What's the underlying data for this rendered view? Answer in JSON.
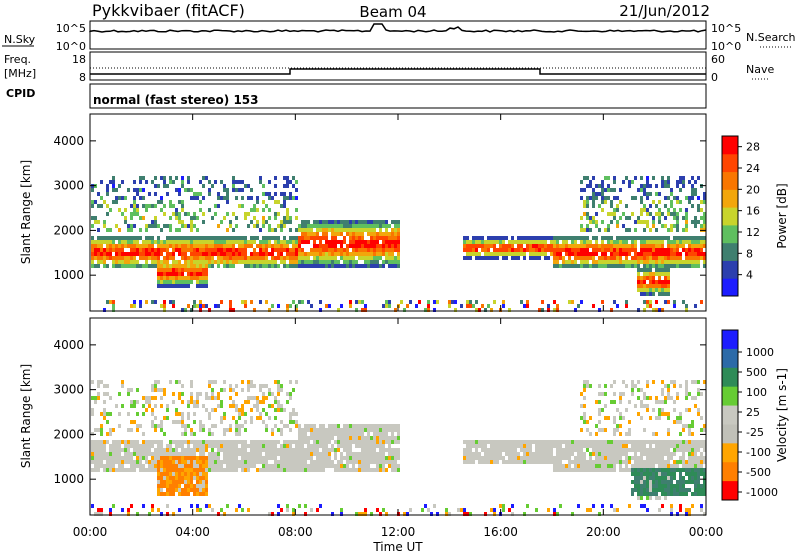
{
  "header": {
    "title": "Pykkvibaer (fitACF)",
    "beam": "Beam 04",
    "date": "21/Jun/2012"
  },
  "panels": {
    "nsky": {
      "label": "N.Sky",
      "ticks": [
        "10^5",
        "10^0"
      ],
      "right_ticks": [
        "10^5",
        "10^0"
      ],
      "right_label": "N.Search"
    },
    "freq": {
      "label_top": "Freq.",
      "label_bottom": "[MHz]",
      "ticks": [
        "18",
        "8"
      ],
      "right_ticks": [
        "60",
        "0"
      ],
      "right_label": "Nave"
    },
    "cpid": {
      "label": "CPID",
      "program": "normal (fast stereo) 153"
    }
  },
  "colors": {
    "power": [
      "#1c1cff",
      "#2c3fae",
      "#3f7f6f",
      "#5fbf5f",
      "#c8d42c",
      "#f2a60b",
      "#f97600",
      "#ff4500",
      "#ff0000"
    ],
    "velocity": [
      "#1c1cff",
      "#2c6aa8",
      "#2e8b57",
      "#66cc33",
      "#c8c8c0",
      "#c0c0b8",
      "#ffa500",
      "#ff7f00",
      "#ff0000"
    ]
  },
  "chart_data": [
    {
      "type": "heatmap",
      "title": "",
      "xlabel": "",
      "ylabel": "Slant Range [km]",
      "x_ticks": [
        "00:00",
        "04:00",
        "08:00",
        "12:00",
        "16:00",
        "20:00",
        "00:00"
      ],
      "y_ticks": [
        "1000",
        "2000",
        "3000",
        "4000"
      ],
      "ylim": [
        200,
        4600
      ],
      "colorbar": {
        "label": "Power [dB]",
        "ticks": [
          "28",
          "24",
          "20",
          "16",
          "12",
          "8",
          "4"
        ],
        "range": [
          0,
          30
        ]
      },
      "bands": [
        {
          "start_h": 0.0,
          "end_h": 8.0,
          "range_km": [
            1300,
            1800
          ],
          "level": "high"
        },
        {
          "start_h": 2.5,
          "end_h": 4.5,
          "range_km": [
            900,
            1300
          ],
          "level": "high"
        },
        {
          "start_h": 8.0,
          "end_h": 12.0,
          "range_km": [
            1400,
            2100
          ],
          "level": "high"
        },
        {
          "start_h": 14.5,
          "end_h": 18.0,
          "range_km": [
            1500,
            1800
          ],
          "level": "high"
        },
        {
          "start_h": 18.0,
          "end_h": 24.0,
          "range_km": [
            1300,
            1800
          ],
          "level": "high"
        },
        {
          "start_h": 21.3,
          "end_h": 22.5,
          "range_km": [
            700,
            1100
          ],
          "level": "high"
        }
      ]
    },
    {
      "type": "heatmap",
      "title": "",
      "xlabel": "Time UT",
      "ylabel": "Slant Range [km]",
      "x_ticks": [
        "00:00",
        "04:00",
        "08:00",
        "12:00",
        "16:00",
        "20:00",
        "00:00"
      ],
      "y_ticks": [
        "1000",
        "2000",
        "3000",
        "4000"
      ],
      "ylim": [
        200,
        4600
      ],
      "colorbar": {
        "label": "Velocity [m s-1]",
        "ticks": [
          "1000",
          "500",
          "100",
          "25",
          "-25",
          "-100",
          "-500",
          "-1000"
        ],
        "range": [
          -1000,
          1000
        ]
      },
      "bands": [
        {
          "start_h": 2.5,
          "end_h": 4.5,
          "range_km": [
            700,
            1600
          ],
          "level": "-500"
        },
        {
          "start_h": 21.0,
          "end_h": 24.0,
          "range_km": [
            700,
            1300
          ],
          "level": "500"
        }
      ]
    }
  ]
}
